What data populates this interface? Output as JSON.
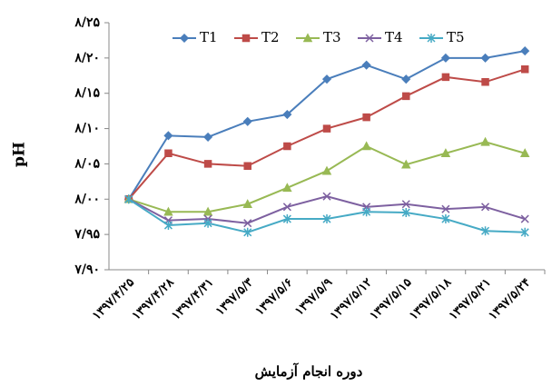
{
  "chart_data": {
    "type": "line",
    "y_label": "pH",
    "x_label": "دوره انجام آزمایش",
    "categories": [
      "۱۳۹۷/۴/۲۵",
      "۱۳۹۷/۴/۲۸",
      "۱۳۹۷/۴/۳۱",
      "۱۳۹۷/۵/۳",
      "۱۳۹۷/۵/۶",
      "۱۳۹۷/۵/۹",
      "۱۳۹۷/۵/۱۲",
      "۱۳۹۷/۵/۱۵",
      "۱۳۹۷/۵/۱۸",
      "۱۳۹۷/۵/۲۱",
      "۱۳۹۷/۵/۲۴"
    ],
    "series": [
      {
        "name": "T1",
        "color": "#4a7ebb",
        "marker": "diamond",
        "values": [
          8.0,
          8.09,
          8.088,
          8.11,
          8.12,
          8.17,
          8.19,
          8.17,
          8.2,
          8.2,
          8.21
        ]
      },
      {
        "name": "T2",
        "color": "#be4b48",
        "marker": "square",
        "values": [
          8.0,
          8.065,
          8.05,
          8.047,
          8.075,
          8.1,
          8.116,
          8.146,
          8.173,
          8.166,
          8.184
        ]
      },
      {
        "name": "T3",
        "color": "#98b954",
        "marker": "triangle",
        "values": [
          8.0,
          7.982,
          7.982,
          7.993,
          8.016,
          8.04,
          8.075,
          8.049,
          8.065,
          8.081,
          8.065
        ]
      },
      {
        "name": "T4",
        "color": "#7d60a0",
        "marker": "x",
        "values": [
          8.0,
          7.97,
          7.972,
          7.966,
          7.989,
          8.004,
          7.989,
          7.993,
          7.986,
          7.989,
          7.972
        ]
      },
      {
        "name": "T5",
        "color": "#46aac5",
        "marker": "star",
        "values": [
          8.0,
          7.963,
          7.966,
          7.953,
          7.972,
          7.972,
          7.982,
          7.981,
          7.972,
          7.955,
          7.953
        ]
      }
    ],
    "ylim": [
      7.9,
      8.25
    ],
    "yticks": [
      {
        "value": 7.9,
        "label": "۷/۹۰"
      },
      {
        "value": 7.95,
        "label": "۷/۹۵"
      },
      {
        "value": 8.0,
        "label": "۸/۰۰"
      },
      {
        "value": 8.05,
        "label": "۸/۰۵"
      },
      {
        "value": 8.1,
        "label": "۸/۱۰"
      },
      {
        "value": 8.15,
        "label": "۸/۱۵"
      },
      {
        "value": 8.2,
        "label": "۸/۲۰"
      },
      {
        "value": 8.25,
        "label": "۸/۲۵"
      }
    ],
    "legend": "top"
  }
}
